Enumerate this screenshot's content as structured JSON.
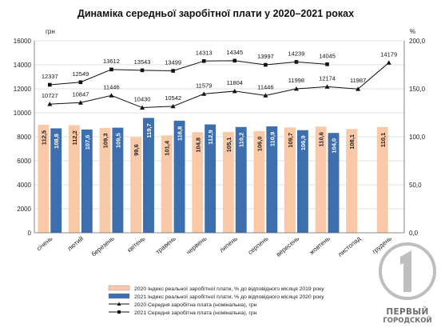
{
  "chart_data": {
    "type": "bar",
    "title": "Динаміка середньої заробітної плати у 2020–2021 роках",
    "left_unit": "грн",
    "right_unit": "%",
    "left_axis": {
      "min": 0,
      "max": 16000,
      "step": 2000,
      "ticks": [
        "0",
        "2000",
        "4000",
        "6000",
        "8000",
        "10000",
        "12000",
        "14000",
        "16000"
      ]
    },
    "right_axis": {
      "min": 0,
      "max": 200,
      "step": 50,
      "ticks": [
        "0,0",
        "50,0",
        "100,0",
        "150,0",
        "200,0"
      ]
    },
    "categories": [
      "січень",
      "лютий",
      "березень",
      "квітень",
      "травень",
      "червень",
      "липень",
      "серпень",
      "вересень",
      "жовтень",
      "листопад",
      "грудень"
    ],
    "series": [
      {
        "name": "2020 Індекс реальної заробітної плати, % до відповідного місяця 2019 року",
        "kind": "bar",
        "axis": "right",
        "color": "#f9c9a8",
        "values": [
          112.5,
          112.2,
          109.3,
          99.6,
          101.4,
          104.8,
          105.1,
          106.0,
          109.7,
          110.6,
          108.1,
          110.1
        ],
        "labels": [
          "112,5",
          "112,2",
          "109,3",
          "99,6",
          "101,4",
          "104,8",
          "105,1",
          "106,0",
          "109,7",
          "110,6",
          "108,1",
          "110,1"
        ]
      },
      {
        "name": "2021 Індекс реальної заробітної плати, % до відповідного місяця 2020 року",
        "kind": "bar",
        "axis": "right",
        "color": "#3d6ead",
        "values": [
          108.8,
          107.6,
          109.5,
          119.7,
          116.8,
          112.9,
          110.2,
          110.9,
          106.9,
          104.0,
          null,
          null
        ],
        "labels": [
          "108,8",
          "107,6",
          "109,5",
          "119,7",
          "116,8",
          "112,9",
          "110,2",
          "110,9",
          "106,9",
          "104,0",
          "",
          ""
        ]
      },
      {
        "name": "2020 Середня заробітна плата (номінальна), грн",
        "kind": "line",
        "axis": "left",
        "marker": "triangle",
        "values": [
          10727,
          10847,
          11446,
          10430,
          10542,
          11579,
          11804,
          11446,
          11998,
          12174,
          11987,
          14179
        ],
        "labels": [
          "10727",
          "10847",
          "11446",
          "10430",
          "10542",
          "11579",
          "11804",
          "11446",
          "11998",
          "12174",
          "11987",
          "14179"
        ]
      },
      {
        "name": "2021 Середня заробітна плата (номінальна), грн",
        "kind": "line",
        "axis": "left",
        "marker": "square",
        "values": [
          12337,
          12549,
          13612,
          13543,
          13499,
          14313,
          14345,
          13997,
          14239,
          14045,
          null,
          null
        ],
        "labels": [
          "12337",
          "12549",
          "13612",
          "13543",
          "13499",
          "14313",
          "14345",
          "13997",
          "14239",
          "14045",
          "",
          ""
        ]
      }
    ],
    "legend_position": "bottom"
  },
  "watermark": {
    "line1": "ПЕРВЫЙ",
    "line2": "ГОРОДСКОЙ"
  }
}
